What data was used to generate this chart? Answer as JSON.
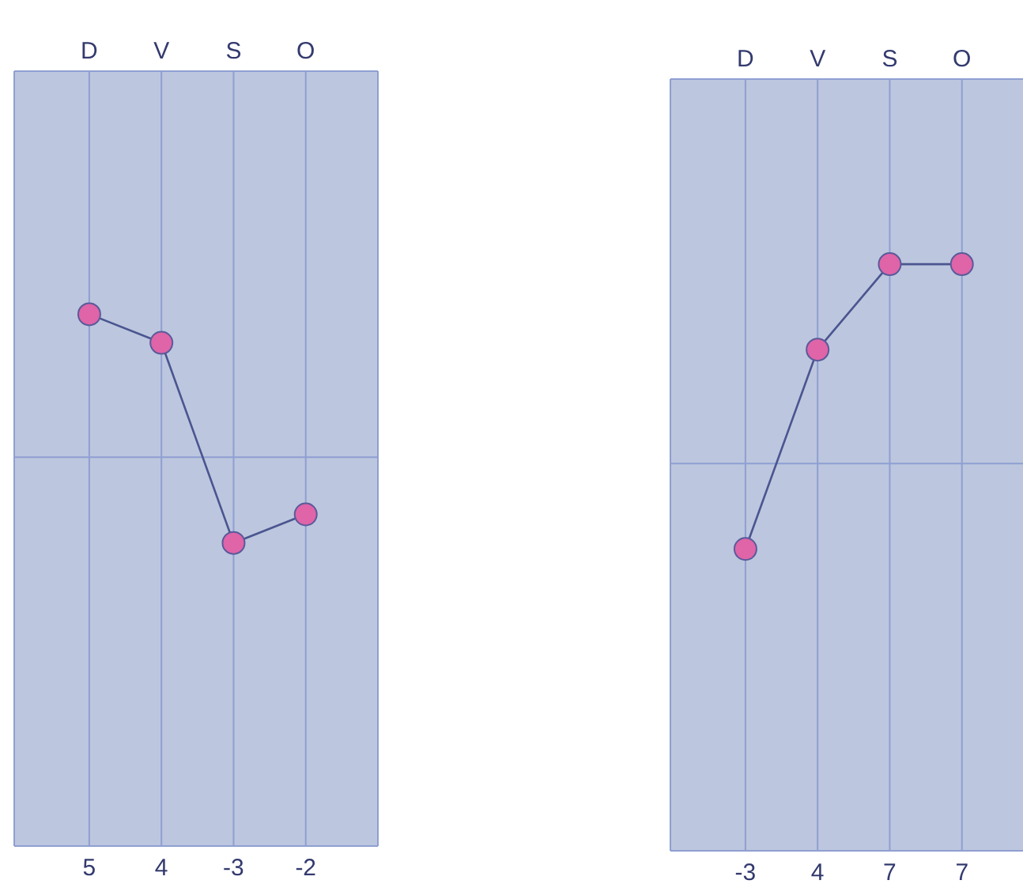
{
  "chart_data": [
    {
      "type": "line",
      "categories": [
        "D",
        "V",
        "S",
        "O"
      ],
      "series": [
        {
          "color": "#e064a8",
          "values": [
            5,
            4,
            -3,
            -2
          ]
        }
      ],
      "data_labels": true,
      "ylim": [
        -13.6,
        13.5
      ],
      "ref_lines": [
        {
          "axis": "y",
          "value": 0,
          "color": "#8f9fd2"
        }
      ],
      "grid": "x",
      "marker": "circle",
      "tick_labels": "x"
    },
    {
      "type": "line",
      "categories": [
        "D",
        "V",
        "S",
        "O"
      ],
      "series": [
        {
          "color": "#e064a8",
          "values": [
            -3,
            4,
            7,
            7
          ]
        }
      ],
      "data_labels": true,
      "ylim": [
        -13.6,
        13.5
      ],
      "ref_lines": [
        {
          "axis": "y",
          "value": 0,
          "color": "#8f9fd2"
        }
      ],
      "grid": "x",
      "marker": "circle",
      "tick_labels": "x"
    }
  ]
}
